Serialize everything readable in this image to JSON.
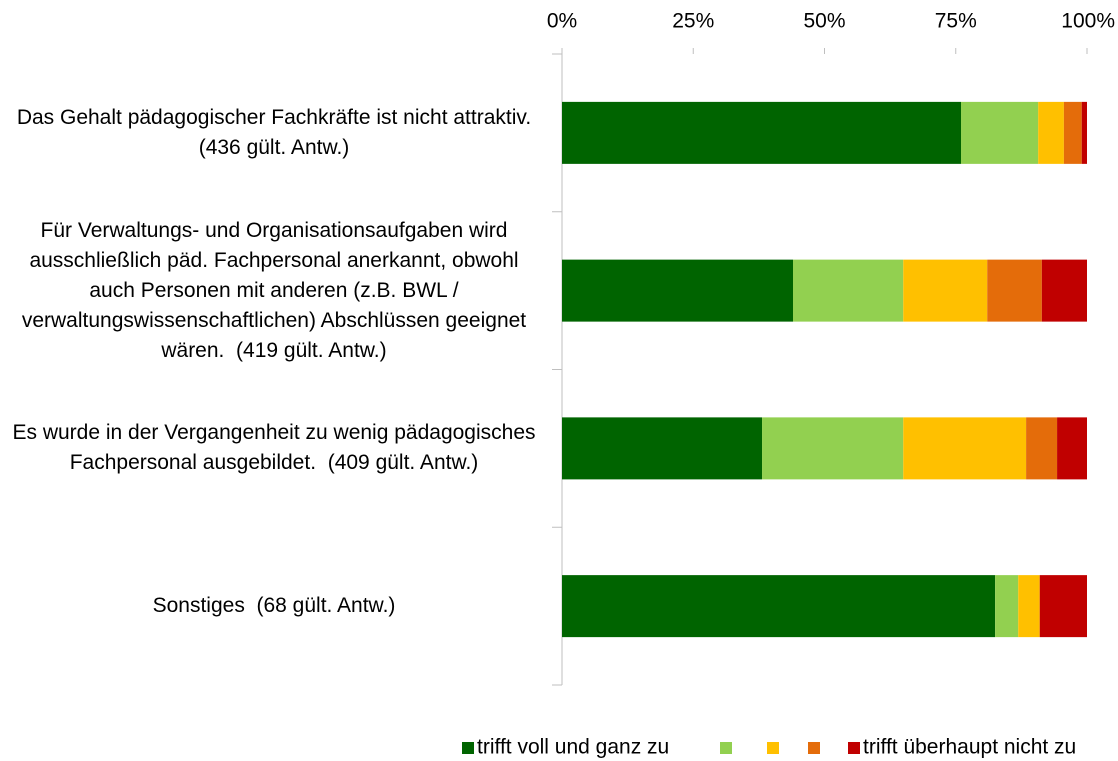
{
  "chart_data": {
    "type": "stacked-barh",
    "categories": [
      "Das Gehalt pädagogischer Fachkräfte ist nicht attraktiv.  (436 gült. Antw.)",
      "Für Verwaltungs- und Organisationsaufgaben wird ausschließlich päd. Fachpersonal anerkannt, obwohl auch Personen mit anderen (z.B. BWL / verwaltungswissenschaftlichen) Abschlüssen geeignet wären.  (419 gült. Antw.)",
      "Es wurde in der Vergangenheit zu wenig pädagogisches Fachpersonal ausgebildet.  (409 gült. Antw.)",
      "Sonstiges  (68 gült. Antw.)"
    ],
    "series": [
      {
        "name": "trifft voll und ganz zu",
        "color": "#006400",
        "values": [
          76.0,
          44.0,
          38.1,
          82.5
        ]
      },
      {
        "name": null,
        "color": "#92d050",
        "values": [
          14.7,
          21.0,
          26.9,
          4.4
        ]
      },
      {
        "name": null,
        "color": "#ffc000",
        "values": [
          4.9,
          16.0,
          23.4,
          4.1
        ]
      },
      {
        "name": null,
        "color": "#e46c0a",
        "values": [
          3.4,
          10.4,
          5.9,
          0
        ]
      },
      {
        "name": "trifft überhaupt nicht zu",
        "color": "#c00000",
        "values": [
          1.0,
          8.6,
          5.7,
          9.0
        ]
      }
    ],
    "xlim": [
      0,
      100
    ],
    "xticks": [
      {
        "value": 0,
        "label": "0%"
      },
      {
        "value": 25,
        "label": "25%"
      },
      {
        "value": 50,
        "label": "50%"
      },
      {
        "value": 75,
        "label": "75%"
      },
      {
        "value": 100,
        "label": "100%"
      }
    ],
    "legend": "bottom"
  }
}
